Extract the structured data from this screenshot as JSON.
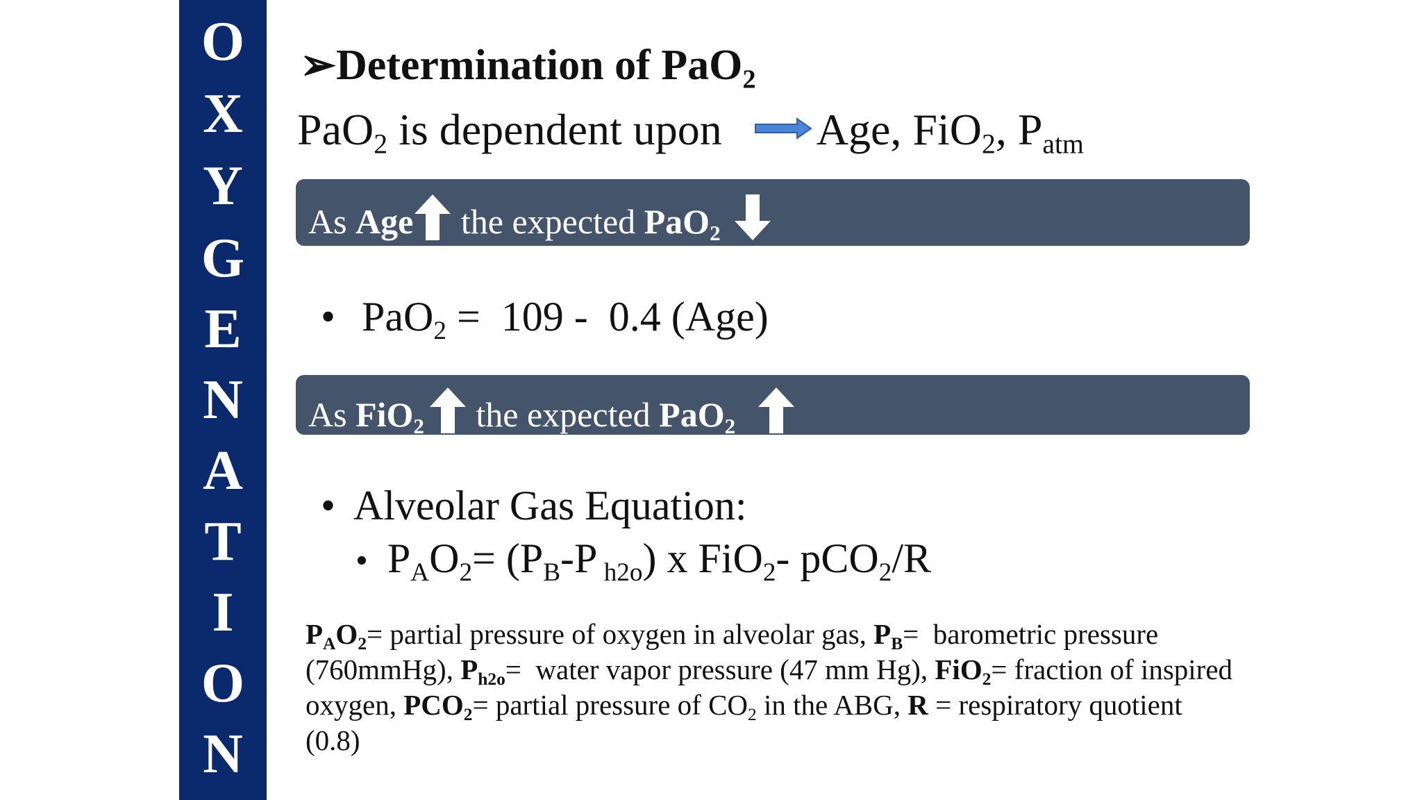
{
  "sidebar": {
    "letters": [
      "O",
      "X",
      "Y",
      "G",
      "E",
      "N",
      "A",
      "T",
      "I",
      "O",
      "N"
    ]
  },
  "title": {
    "marker": "➢",
    "text": "Determination of PaO",
    "sub": "2"
  },
  "dependency": {
    "lhs": "PaO",
    "lhs_sub": "2",
    "lhs_rest": " is dependent upon",
    "rhs": "Age, FiO",
    "rhs_sub": "2",
    "rhs_rest": ", P",
    "rhs_sub2": "atm"
  },
  "bar_age": {
    "as": "As ",
    "var": "Age",
    "mid": " the expected ",
    "res": "PaO",
    "res_sub": "2"
  },
  "formula_age": {
    "bullet": "•",
    "lhs": "PaO",
    "lhs_sub": "2",
    "rest": " =  109 -  0.4 (Age)"
  },
  "bar_fio2": {
    "as": "As ",
    "var": "FiO",
    "var_sub": "2",
    "mid": " the expected ",
    "res": "PaO",
    "res_sub": "2"
  },
  "alveolar": {
    "bullet": "•",
    "heading": "Alveolar Gas Equation:",
    "sub_bullet": "•",
    "p1": "P",
    "p1_sub": "A",
    "p2": "O",
    "p2_sub": "2",
    "p3": "= (P",
    "p3_sub": "B",
    "p4": "-P",
    "p4_sub": " h2o",
    "p5": ") x FiO",
    "p5_sub": "2",
    "p6": "- pCO",
    "p6_sub": "2",
    "p7": "/R"
  },
  "definitions": {
    "pao2_b": "P",
    "pao2_sub": "A",
    "pao2_b2": "O",
    "pao2_sub2": "2",
    "pao2_text": "= partial pressure of oxygen in alveolar gas, ",
    "pb_b": "P",
    "pb_sub": "B",
    "pb_text": "=  barometric pressure (760mmHg), ",
    "ph2o_b": "P",
    "ph2o_sub": "h2o",
    "ph2o_text": "=  water vapor pressure (47 mm Hg), ",
    "fio2_b": "FiO",
    "fio2_sub": "2",
    "fio2_text": "= fraction of inspired oxygen, ",
    "pco2_b": "PCO",
    "pco2_sub": "2",
    "pco2_text": "= partial pressure of CO",
    "pco2_text_sub": "2",
    "pco2_text2": " in the ABG, ",
    "r_b": "R",
    "r_text": " = respiratory quotient (0.8)"
  },
  "colors": {
    "sidebar": "#0b2a6e",
    "bar": "#44546a",
    "arrow_blue": "#4a86d8"
  }
}
